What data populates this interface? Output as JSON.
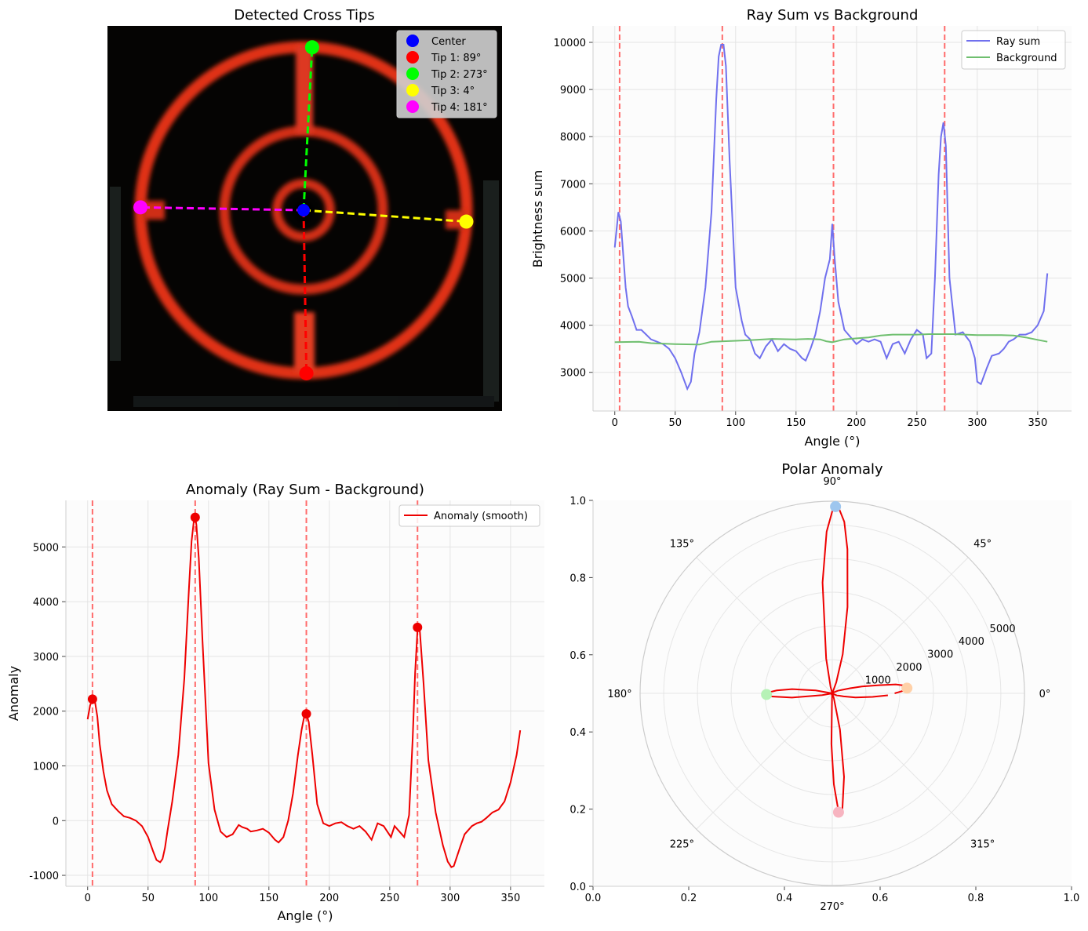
{
  "chart_data": [
    {
      "type": "image",
      "title": "Detected Cross Tips",
      "colors": {
        "ring": "#e8321c",
        "background": "#050403",
        "cross_bar": "#e33a20"
      },
      "center": {
        "label": "Center",
        "color": "#0000ff"
      },
      "tips": [
        {
          "label": "Tip 1: 89°",
          "angle": 89,
          "color": "#ff0000"
        },
        {
          "label": "Tip 2: 273°",
          "angle": 273,
          "color": "#00ff00"
        },
        {
          "label": "Tip 3: 4°",
          "angle": 4,
          "color": "#ffff00"
        },
        {
          "label": "Tip 4: 181°",
          "angle": 181,
          "color": "#ff00ff"
        }
      ],
      "legend_position": "top-right"
    },
    {
      "type": "line",
      "title": "Ray Sum vs Background",
      "xlabel": "Angle (°)",
      "ylabel": "Brightness sum",
      "xlim": [
        -18,
        378
      ],
      "ylim": [
        2180,
        10350
      ],
      "xticks": [
        0,
        50,
        100,
        150,
        200,
        250,
        300,
        350
      ],
      "yticks": [
        3000,
        4000,
        5000,
        6000,
        7000,
        8000,
        9000,
        10000
      ],
      "grid": true,
      "legend_position": "top-right",
      "vlines": [
        4,
        89,
        181,
        273
      ],
      "series": [
        {
          "name": "Ray sum",
          "color": "#7070ee",
          "x": [
            0,
            3,
            5,
            7,
            9,
            11,
            14,
            18,
            22,
            26,
            30,
            35,
            40,
            45,
            50,
            55,
            60,
            63,
            66,
            70,
            75,
            80,
            84,
            86,
            88,
            90,
            92,
            95,
            100,
            105,
            108,
            112,
            116,
            120,
            125,
            130,
            135,
            140,
            145,
            150,
            155,
            158,
            162,
            166,
            170,
            174,
            178,
            180,
            182,
            185,
            190,
            195,
            200,
            205,
            210,
            215,
            220,
            225,
            230,
            235,
            240,
            245,
            250,
            255,
            258,
            262,
            265,
            268,
            270,
            272,
            274,
            277,
            282,
            288,
            294,
            298,
            300,
            303,
            308,
            312,
            318,
            322,
            326,
            330,
            335,
            340,
            345,
            350,
            355,
            358
          ],
          "y": [
            5650,
            6400,
            6200,
            5500,
            4800,
            4400,
            4200,
            3900,
            3900,
            3800,
            3700,
            3650,
            3600,
            3500,
            3300,
            3000,
            2650,
            2800,
            3400,
            3850,
            4800,
            6400,
            8800,
            9700,
            9950,
            9950,
            9500,
            7500,
            4800,
            4100,
            3800,
            3700,
            3400,
            3300,
            3550,
            3700,
            3450,
            3600,
            3500,
            3450,
            3300,
            3250,
            3500,
            3800,
            4300,
            5000,
            5400,
            6150,
            5400,
            4500,
            3900,
            3750,
            3600,
            3700,
            3650,
            3700,
            3650,
            3300,
            3600,
            3650,
            3400,
            3700,
            3900,
            3800,
            3300,
            3400,
            5000,
            7200,
            8000,
            8300,
            7800,
            5000,
            3800,
            3850,
            3650,
            3300,
            2800,
            2750,
            3100,
            3350,
            3400,
            3500,
            3650,
            3700,
            3800,
            3800,
            3850,
            4000,
            4300,
            5100
          ]
        },
        {
          "name": "Background",
          "color": "#6fbf6f",
          "x": [
            0,
            20,
            30,
            50,
            70,
            80,
            90,
            110,
            130,
            150,
            160,
            170,
            175,
            180,
            190,
            200,
            210,
            220,
            230,
            250,
            260,
            270,
            280,
            290,
            300,
            310,
            320,
            330,
            340,
            350,
            358
          ],
          "y": [
            3640,
            3650,
            3620,
            3600,
            3590,
            3650,
            3660,
            3680,
            3710,
            3700,
            3710,
            3700,
            3660,
            3640,
            3700,
            3720,
            3740,
            3780,
            3800,
            3800,
            3810,
            3810,
            3810,
            3800,
            3790,
            3790,
            3790,
            3780,
            3740,
            3690,
            3650
          ]
        }
      ]
    },
    {
      "type": "line",
      "title": "Anomaly (Ray Sum - Background)",
      "xlabel": "Angle (°)",
      "ylabel": "Anomaly",
      "xlim": [
        -18,
        378
      ],
      "ylim": [
        -1200,
        5850
      ],
      "xticks": [
        0,
        50,
        100,
        150,
        200,
        250,
        300,
        350
      ],
      "yticks": [
        -1000,
        0,
        1000,
        2000,
        3000,
        4000,
        5000
      ],
      "grid": true,
      "legend_position": "top-right",
      "vlines": [
        4,
        89,
        181,
        273
      ],
      "peaks": [
        {
          "x": 4,
          "y": 2220
        },
        {
          "x": 89,
          "y": 5540
        },
        {
          "x": 181,
          "y": 1950
        },
        {
          "x": 273,
          "y": 3530
        }
      ],
      "series": [
        {
          "name": "Anomaly (smooth)",
          "color": "#ee0000",
          "x": [
            0,
            2,
            4,
            6,
            8,
            10,
            13,
            16,
            20,
            25,
            30,
            35,
            40,
            45,
            50,
            54,
            57,
            60,
            62,
            64,
            66,
            70,
            75,
            80,
            84,
            86,
            88,
            89,
            90,
            92,
            95,
            100,
            105,
            110,
            115,
            120,
            125,
            128,
            132,
            135,
            140,
            145,
            150,
            155,
            158,
            162,
            166,
            170,
            174,
            177,
            179,
            181,
            183,
            186,
            190,
            195,
            200,
            205,
            210,
            215,
            220,
            225,
            230,
            235,
            240,
            245,
            248,
            251,
            254,
            258,
            262,
            266,
            269,
            271,
            273,
            275,
            278,
            282,
            288,
            294,
            298,
            301,
            303,
            308,
            312,
            318,
            322,
            326,
            330,
            335,
            340,
            345,
            350,
            355,
            358
          ],
          "y": [
            1850,
            2100,
            2220,
            2180,
            1900,
            1400,
            900,
            550,
            300,
            180,
            80,
            50,
            0,
            -100,
            -300,
            -550,
            -720,
            -760,
            -700,
            -500,
            -200,
            350,
            1200,
            2600,
            4300,
            5100,
            5500,
            5540,
            5400,
            4800,
            3300,
            1050,
            200,
            -200,
            -300,
            -250,
            -80,
            -120,
            -150,
            -200,
            -180,
            -150,
            -220,
            -350,
            -400,
            -300,
            0,
            500,
            1200,
            1650,
            1880,
            1950,
            1800,
            1200,
            300,
            -50,
            -100,
            -50,
            -30,
            -100,
            -150,
            -100,
            -200,
            -350,
            -50,
            -100,
            -200,
            -300,
            -100,
            -200,
            -300,
            100,
            1500,
            2700,
            3500,
            3450,
            2500,
            1100,
            150,
            -450,
            -750,
            -850,
            -830,
            -500,
            -250,
            -100,
            -50,
            -20,
            50,
            150,
            200,
            350,
            700,
            1200,
            1650
          ]
        }
      ]
    },
    {
      "type": "polar",
      "title": "Polar Anomaly",
      "theta_labels": [
        "0°",
        "45°",
        "90°",
        "135°",
        "180°",
        "225°",
        "270°",
        "315°"
      ],
      "r_ticks": [
        1000,
        2000,
        3000,
        4000,
        5000
      ],
      "r_max": 5700,
      "xticks": [
        0.0,
        0.2,
        0.4,
        0.6,
        0.8,
        1.0
      ],
      "yticks": [
        0.0,
        0.2,
        0.4,
        0.6,
        0.8,
        1.0
      ],
      "tick_labels": [
        "0.0",
        "0.2",
        "0.4",
        "0.6",
        "0.8",
        "1.0"
      ],
      "series_color": "#ee0000",
      "peaks": [
        {
          "angle": 4,
          "r": 2220,
          "color": "#ffd1a8"
        },
        {
          "angle": 89,
          "r": 5540,
          "color": "#9ec6ee"
        },
        {
          "angle": 181,
          "r": 1950,
          "color": "#b6f2b6"
        },
        {
          "angle": 273,
          "r": 3530,
          "color": "#f7b4c0"
        }
      ]
    }
  ]
}
